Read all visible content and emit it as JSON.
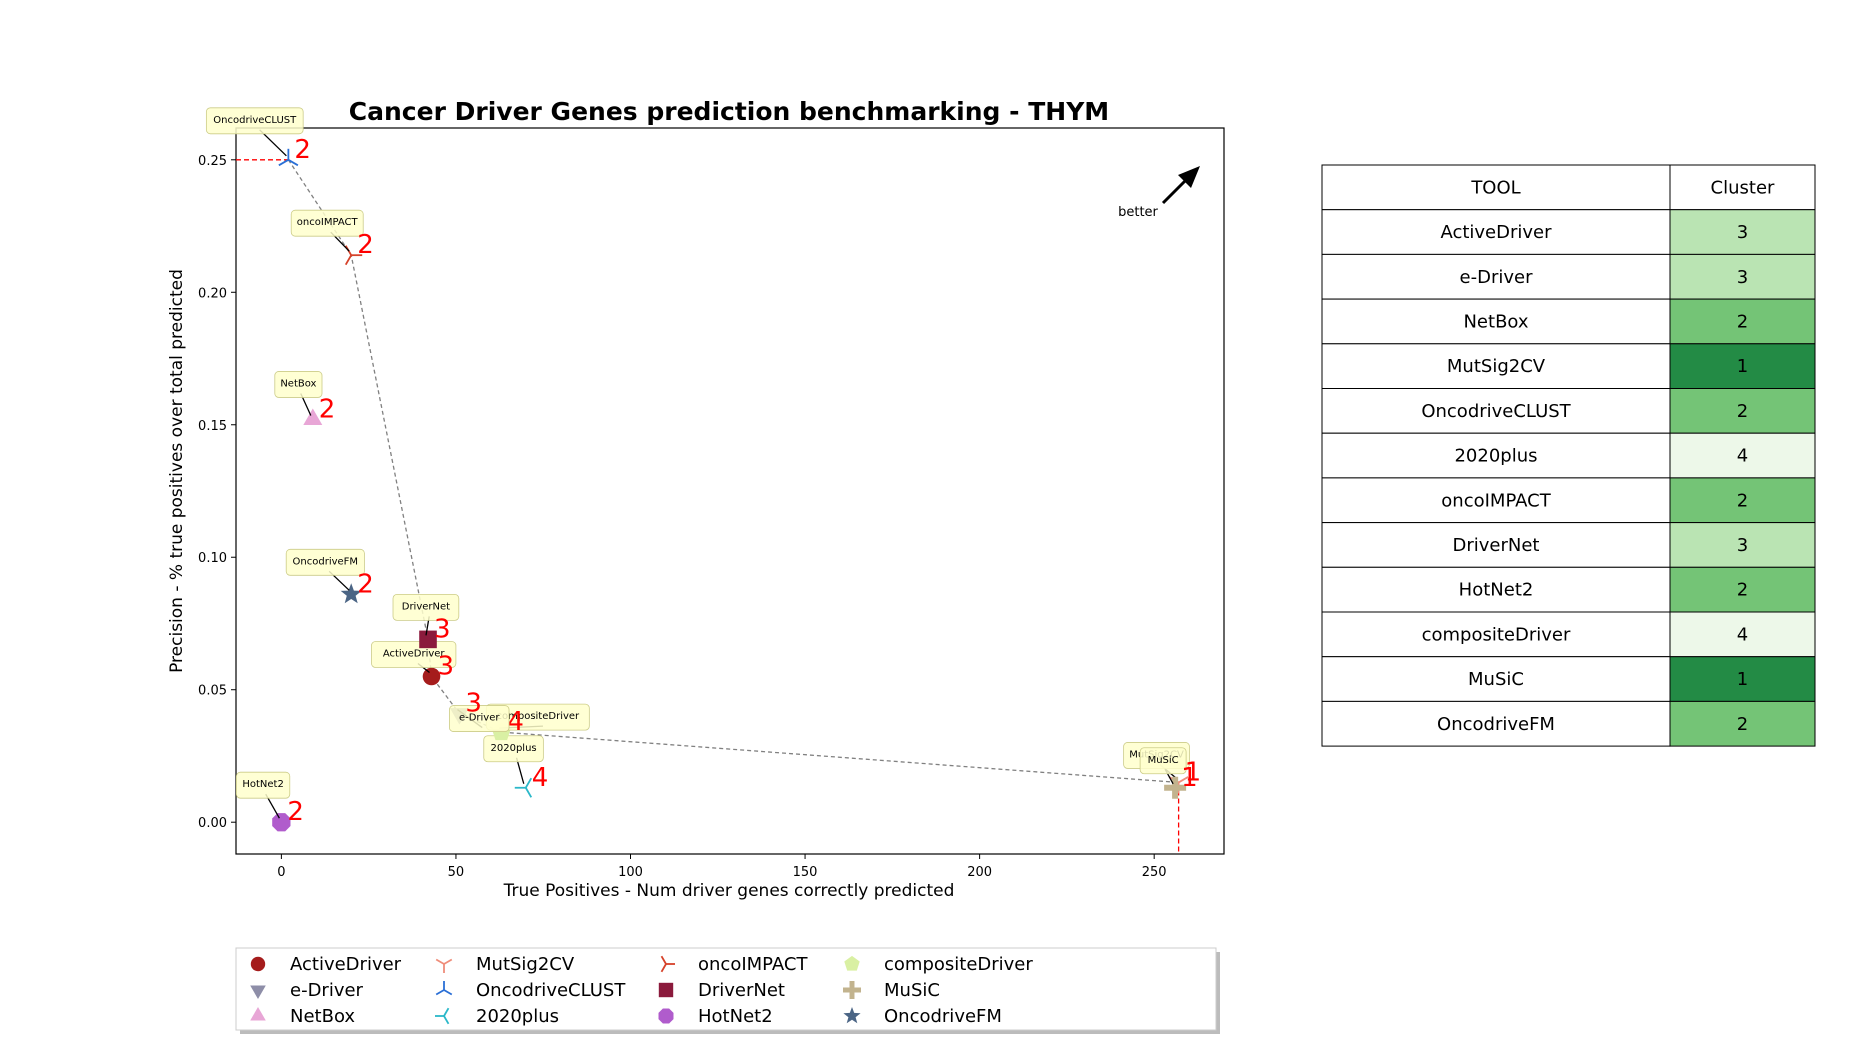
{
  "chart_data": {
    "type": "scatter",
    "title": "Cancer Driver Genes prediction benchmarking - THYM",
    "xlabel": "True Positives - Num driver genes correctly predicted",
    "ylabel": "Precision - % true positives over total predicted",
    "xlim": [
      -13,
      270
    ],
    "ylim": [
      -0.012,
      0.262
    ],
    "xticks": [
      "0",
      "50",
      "100",
      "150",
      "200",
      "250"
    ],
    "yticks": [
      "0.00",
      "0.05",
      "0.10",
      "0.15",
      "0.20",
      "0.25"
    ],
    "grid": false,
    "better_label": "better",
    "legend_position": "bottom",
    "series": [
      {
        "name": "ActiveDriver",
        "x": 43,
        "y": 0.055,
        "cluster": "3",
        "color": "#a51c1c",
        "marker": "circle"
      },
      {
        "name": "e-Driver",
        "x": 51,
        "y": 0.041,
        "cluster": "3",
        "color": "#8e8ea8",
        "marker": "triangle-down"
      },
      {
        "name": "NetBox",
        "x": 9,
        "y": 0.152,
        "cluster": "2",
        "color": "#e8a6d6",
        "marker": "triangle-up"
      },
      {
        "name": "MutSig2CV",
        "x": 257,
        "y": 0.015,
        "cluster": "1",
        "color": "#ef8d7a",
        "marker": "tri-down"
      },
      {
        "name": "OncodriveCLUST",
        "x": 2,
        "y": 0.25,
        "cluster": "2",
        "color": "#2a6fd6",
        "marker": "tri-up"
      },
      {
        "name": "2020plus",
        "x": 70,
        "y": 0.013,
        "cluster": "4",
        "color": "#2bb8c9",
        "marker": "tri-left"
      },
      {
        "name": "oncoIMPACT",
        "x": 20,
        "y": 0.214,
        "cluster": "2",
        "color": "#d6422a",
        "marker": "tri-right"
      },
      {
        "name": "DriverNet",
        "x": 42,
        "y": 0.069,
        "cluster": "3",
        "color": "#8b1a3c",
        "marker": "square"
      },
      {
        "name": "HotNet2",
        "x": 0,
        "y": 0.0,
        "cluster": "2",
        "color": "#b05ccc",
        "marker": "octagon"
      },
      {
        "name": "compositeDriver",
        "x": 63,
        "y": 0.034,
        "cluster": "4",
        "color": "#d9f0a3",
        "marker": "pentagon"
      },
      {
        "name": "MuSiC",
        "x": 256,
        "y": 0.013,
        "cluster": "1",
        "color": "#c2b38e",
        "marker": "plus"
      },
      {
        "name": "OncodriveFM",
        "x": 20,
        "y": 0.086,
        "cluster": "2",
        "color": "#4b6585",
        "marker": "star"
      }
    ],
    "frontier": [
      [
        2,
        0.25
      ],
      [
        20,
        0.214
      ],
      [
        42,
        0.069
      ],
      [
        43,
        0.055
      ],
      [
        51,
        0.041
      ],
      [
        63,
        0.034
      ],
      [
        257,
        0.015
      ]
    ],
    "table": {
      "headers": [
        "TOOL",
        "Cluster"
      ],
      "rows": [
        [
          "ActiveDriver",
          "3"
        ],
        [
          "e-Driver",
          "3"
        ],
        [
          "NetBox",
          "2"
        ],
        [
          "MutSig2CV",
          "1"
        ],
        [
          "OncodriveCLUST",
          "2"
        ],
        [
          "2020plus",
          "4"
        ],
        [
          "oncoIMPACT",
          "2"
        ],
        [
          "DriverNet",
          "3"
        ],
        [
          "HotNet2",
          "2"
        ],
        [
          "compositeDriver",
          "4"
        ],
        [
          "MuSiC",
          "1"
        ],
        [
          "OncodriveFM",
          "2"
        ]
      ],
      "cluster_colors": {
        "1": "#238b45",
        "2": "#74c476",
        "3": "#bae4b3",
        "4": "#edf8e9"
      }
    },
    "legend_order": [
      "ActiveDriver",
      "e-Driver",
      "NetBox",
      "MutSig2CV",
      "OncodriveCLUST",
      "2020plus",
      "oncoIMPACT",
      "DriverNet",
      "HotNet2",
      "compositeDriver",
      "MuSiC",
      "OncodriveFM"
    ]
  }
}
